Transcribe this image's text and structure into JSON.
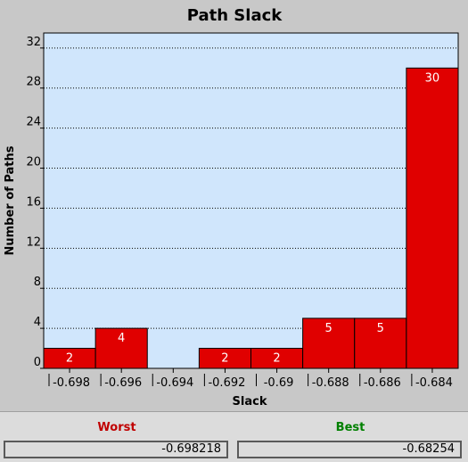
{
  "chart_data": {
    "type": "bar",
    "title": "Path Slack",
    "xlabel": "Slack",
    "ylabel": "Number of Paths",
    "categories": [
      "-0.698",
      "-0.696",
      "-0.694",
      "-0.692",
      "-0.69",
      "-0.688",
      "-0.686",
      "-0.684"
    ],
    "values": [
      2,
      4,
      0,
      2,
      2,
      5,
      5,
      30
    ],
    "value_labels": [
      "2",
      "4",
      "",
      "2",
      "2",
      "5",
      "5",
      "30"
    ],
    "y_ticks": [
      0,
      4,
      8,
      12,
      16,
      20,
      24,
      28,
      32
    ],
    "ylim": [
      0,
      33.5
    ],
    "grid": true,
    "bar_color": "#e00000",
    "plot_background": "#d0e6fc"
  },
  "summary": {
    "worst_label": "Worst",
    "worst_value": "-0.698218",
    "worst_color": "#c00000",
    "best_label": "Best",
    "best_value": "-0.68254",
    "best_color": "#008000"
  }
}
